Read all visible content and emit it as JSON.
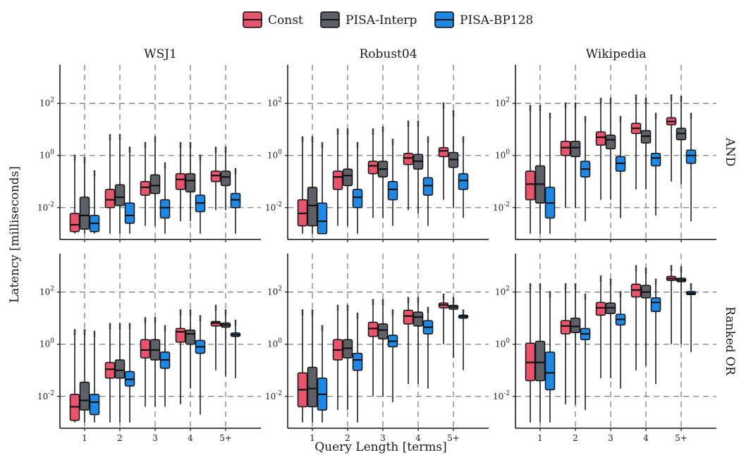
{
  "chart_data": {
    "type": "boxplot",
    "y_scale": "log10",
    "ylim": [
      0.0006,
      3000
    ],
    "y_ticks": [
      {
        "value": 0.01,
        "base": "10",
        "exp": "-2"
      },
      {
        "value": 1,
        "base": "10",
        "exp": "0"
      },
      {
        "value": 100,
        "base": "10",
        "exp": "2"
      }
    ],
    "xlabel": "Query Length [terms]",
    "ylabel": "Latency [milliseconds]",
    "categories": [
      "1",
      "2",
      "3",
      "4",
      "5+"
    ],
    "grid": "dashed, at ticks",
    "legend_position": "top",
    "columns": [
      "WSJ1",
      "Robust04",
      "Wikipedia"
    ],
    "rows": [
      "AND",
      "Ranked OR"
    ],
    "series": [
      {
        "name": "Const",
        "color": "#e8546e"
      },
      {
        "name": "PISA-Interp",
        "color": "#5e6068"
      },
      {
        "name": "PISA-BP128",
        "color": "#1e88e5"
      }
    ],
    "panels": [
      {
        "column": "WSJ1",
        "row": "AND",
        "boxes": [
          [
            [
              0.001,
              0.0012,
              0.0022,
              0.006,
              1.0
            ],
            [
              0.001,
              0.0015,
              0.005,
              0.025,
              0.8
            ],
            [
              0.001,
              0.0012,
              0.0025,
              0.005,
              0.25
            ]
          ],
          [
            [
              0.001,
              0.01,
              0.02,
              0.05,
              6
            ],
            [
              0.001,
              0.012,
              0.025,
              0.075,
              6
            ],
            [
              0.001,
              0.0025,
              0.005,
              0.015,
              2
            ]
          ],
          [
            [
              0.002,
              0.03,
              0.06,
              0.1,
              3
            ],
            [
              0.002,
              0.035,
              0.07,
              0.18,
              5
            ],
            [
              0.001,
              0.004,
              0.01,
              0.02,
              0.5
            ]
          ],
          [
            [
              0.003,
              0.05,
              0.12,
              0.2,
              3
            ],
            [
              0.003,
              0.04,
              0.11,
              0.2,
              3
            ],
            [
              0.001,
              0.007,
              0.015,
              0.03,
              1
            ]
          ],
          [
            [
              0.008,
              0.1,
              0.17,
              0.25,
              2
            ],
            [
              0.008,
              0.07,
              0.15,
              0.25,
              2
            ],
            [
              0.001,
              0.01,
              0.02,
              0.035,
              0.3
            ]
          ]
        ]
      },
      {
        "column": "Robust04",
        "row": "AND",
        "boxes": [
          [
            [
              0.001,
              0.002,
              0.006,
              0.02,
              5
            ],
            [
              0.001,
              0.002,
              0.012,
              0.06,
              5
            ],
            [
              0.001,
              0.001,
              0.003,
              0.015,
              3
            ]
          ],
          [
            [
              0.002,
              0.05,
              0.15,
              0.25,
              10
            ],
            [
              0.002,
              0.07,
              0.17,
              0.3,
              10
            ],
            [
              0.001,
              0.01,
              0.025,
              0.05,
              3
            ]
          ],
          [
            [
              0.004,
              0.2,
              0.4,
              0.6,
              10
            ],
            [
              0.004,
              0.15,
              0.3,
              0.6,
              12
            ],
            [
              0.002,
              0.02,
              0.05,
              0.1,
              4
            ]
          ],
          [
            [
              0.008,
              0.45,
              0.8,
              1.2,
              20
            ],
            [
              0.006,
              0.3,
              0.6,
              1.1,
              20
            ],
            [
              0.002,
              0.03,
              0.07,
              0.14,
              5
            ]
          ],
          [
            [
              0.02,
              0.9,
              1.5,
              2,
              100
            ],
            [
              0.01,
              0.35,
              0.7,
              1.3,
              50
            ],
            [
              0.004,
              0.05,
              0.11,
              0.2,
              5
            ]
          ]
        ]
      },
      {
        "column": "Wikipedia",
        "row": "AND",
        "boxes": [
          [
            [
              0.001,
              0.02,
              0.08,
              0.25,
              80
            ],
            [
              0.001,
              0.015,
              0.08,
              0.4,
              80
            ],
            [
              0.001,
              0.004,
              0.015,
              0.06,
              40
            ]
          ],
          [
            [
              0.01,
              1,
              2,
              3.5,
              100
            ],
            [
              0.01,
              0.9,
              2,
              3.5,
              100
            ],
            [
              0.003,
              0.15,
              0.3,
              0.6,
              30
            ]
          ],
          [
            [
              0.02,
              2.5,
              5,
              8,
              150
            ],
            [
              0.02,
              1.8,
              4,
              6,
              150
            ],
            [
              0.004,
              0.25,
              0.5,
              0.9,
              30
            ]
          ],
          [
            [
              0.05,
              7,
              11,
              17,
              200
            ],
            [
              0.05,
              3,
              5.5,
              9,
              150
            ],
            [
              0.005,
              0.4,
              0.8,
              1.2,
              40
            ]
          ],
          [
            [
              0.1,
              15,
              20,
              28,
              200
            ],
            [
              0.08,
              4,
              7,
              11,
              180
            ],
            [
              0.003,
              0.5,
              1,
              1.6,
              40
            ]
          ]
        ]
      }
    ],
    "panels_ranked_or": [
      {
        "column": "WSJ1",
        "row": "Ranked OR",
        "boxes": [
          [
            [
              0.001,
              0.0012,
              0.004,
              0.012,
              3.5
            ],
            [
              0.001,
              0.003,
              0.007,
              0.035,
              3.5
            ],
            [
              0.001,
              0.002,
              0.006,
              0.012,
              3
            ]
          ],
          [
            [
              0.001,
              0.05,
              0.11,
              0.2,
              6
            ],
            [
              0.001,
              0.05,
              0.1,
              0.25,
              6
            ],
            [
              0.001,
              0.025,
              0.045,
              0.09,
              6
            ]
          ],
          [
            [
              0.004,
              0.3,
              0.6,
              1.5,
              10
            ],
            [
              0.004,
              0.25,
              0.6,
              1.5,
              10
            ],
            [
              0.004,
              0.12,
              0.25,
              0.5,
              5
            ]
          ],
          [
            [
              0.005,
              1.2,
              3,
              4,
              20
            ],
            [
              0.02,
              1,
              2.5,
              3.5,
              20
            ],
            [
              0.002,
              0.45,
              0.8,
              1.4,
              12
            ]
          ],
          [
            [
              0.1,
              5,
              6.5,
              7.5,
              30
            ],
            [
              0.06,
              4.5,
              5.5,
              6.5,
              20
            ],
            [
              0.05,
              2,
              2.3,
              2.7,
              8
            ]
          ]
        ]
      },
      {
        "column": "Robust04",
        "row": "Ranked OR",
        "boxes": [
          [
            [
              0.001,
              0.004,
              0.018,
              0.08,
              20
            ],
            [
              0.001,
              0.004,
              0.02,
              0.13,
              20
            ],
            [
              0.001,
              0.003,
              0.012,
              0.05,
              5
            ]
          ],
          [
            [
              0.003,
              0.25,
              0.6,
              1.5,
              30
            ],
            [
              0.003,
              0.3,
              0.7,
              1.5,
              30
            ],
            [
              0.001,
              0.1,
              0.25,
              0.45,
              15
            ]
          ],
          [
            [
              0.01,
              2,
              4,
              7,
              50
            ],
            [
              0.01,
              1.6,
              3.5,
              6,
              50
            ],
            [
              0.006,
              0.8,
              1.3,
              2.2,
              20
            ]
          ],
          [
            [
              0.03,
              6,
              12,
              20,
              60
            ],
            [
              0.03,
              5,
              11,
              17,
              60
            ],
            [
              0.02,
              2.5,
              4.5,
              8,
              25
            ]
          ],
          [
            [
              1,
              25,
              32,
              38,
              80
            ],
            [
              0.3,
              22,
              27,
              31,
              60
            ],
            [
              0.1,
              10,
              11.5,
              13,
              20
            ]
          ]
        ]
      },
      {
        "column": "Wikipedia",
        "row": "Ranked OR",
        "boxes": [
          [
            [
              0.001,
              0.04,
              0.2,
              1.1,
              200
            ],
            [
              0.001,
              0.04,
              0.2,
              1.3,
              200
            ],
            [
              0.001,
              0.018,
              0.08,
              0.5,
              100
            ]
          ],
          [
            [
              0.005,
              2.5,
              5,
              8,
              200
            ],
            [
              0.005,
              2.8,
              4.8,
              10,
              200
            ],
            [
              0.003,
              1.5,
              2.5,
              4,
              80
            ]
          ],
          [
            [
              0.05,
              13,
              25,
              40,
              400
            ],
            [
              0.05,
              15,
              25,
              38,
              300
            ],
            [
              0.02,
              5.5,
              9,
              14,
              100
            ]
          ],
          [
            [
              0.1,
              65,
              120,
              200,
              1000
            ],
            [
              0.15,
              60,
              100,
              180,
              800
            ],
            [
              0.03,
              18,
              40,
              60,
              300
            ]
          ],
          [
            [
              1,
              280,
              330,
              400,
              1000
            ],
            [
              1,
              250,
              290,
              340,
              900
            ],
            [
              0.5,
              80,
              90,
              105,
              200
            ]
          ]
        ]
      }
    ]
  }
}
